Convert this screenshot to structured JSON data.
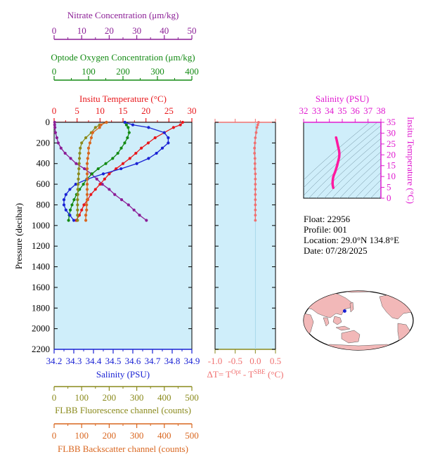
{
  "colors": {
    "nitrate": "#8b1e96",
    "oxygen": "#138a13",
    "temperature": "#e8171b",
    "salinity": "#1a22d4",
    "fluorescence": "#8a8a1c",
    "backscatter": "#d9661f",
    "delta_t": "#f07070",
    "ts_axis": "#e01bd0",
    "panel_fill": "#cfeefa",
    "land": "#f2b8b8",
    "ocean": "#ffffff"
  },
  "icons": {
    "float_marker": "blue-dot-marker"
  },
  "info": {
    "float": "Float:  22956",
    "profile": "Profile:  001",
    "location": "Location:  29.0°N  134.8°E",
    "date": "Date:  07/28/2025"
  },
  "chart_data": [
    {
      "type": "line",
      "title": "",
      "ylabel": "Pressure (decibar)",
      "ylim": [
        2200,
        0
      ],
      "yticks": [
        "0",
        "200",
        "400",
        "600",
        "800",
        "1000",
        "1200",
        "1400",
        "1600",
        "1800",
        "2000",
        "2200"
      ],
      "y": [
        0,
        25,
        50,
        100,
        150,
        200,
        250,
        300,
        350,
        400,
        450,
        500,
        550,
        600,
        650,
        700,
        750,
        800,
        850,
        900,
        950
      ],
      "axes": {
        "nitrate": {
          "label": "Nitrate Concentration (μm/kg)",
          "range": [
            0,
            50
          ],
          "ticks": [
            "0",
            "10",
            "20",
            "30",
            "40",
            "50"
          ]
        },
        "oxygen": {
          "label": "Optode Oxygen Concentration (μm/kg)",
          "range": [
            0,
            400
          ],
          "ticks": [
            "0",
            "100",
            "200",
            "300",
            "400"
          ]
        },
        "temperature": {
          "label": "Insitu Temperature (°C)",
          "range": [
            0,
            30
          ],
          "ticks": [
            "0",
            "5",
            "10",
            "15",
            "20",
            "25",
            "30"
          ]
        },
        "salinity": {
          "label": "Salinity (PSU)",
          "range": [
            34.2,
            34.9
          ],
          "ticks": [
            "34.2",
            "34.3",
            "34.4",
            "34.5",
            "34.6",
            "34.7",
            "34.8",
            "34.9"
          ]
        },
        "fluorescence": {
          "label": "FLBB Fluorescence channel (counts)",
          "range": [
            0,
            500
          ],
          "ticks": [
            "0",
            "100",
            "200",
            "300",
            "400",
            "500"
          ]
        },
        "backscatter": {
          "label": "FLBB Backscatter channel (counts)",
          "range": [
            0,
            500
          ],
          "ticks": [
            "0",
            "100",
            "200",
            "300",
            "400",
            "500"
          ]
        }
      },
      "series": [
        {
          "name": "Nitrate",
          "key": "nitrate",
          "values": [
            0.2,
            0.2,
            0.3,
            0.5,
            1,
            1.5,
            2.5,
            4,
            6,
            8,
            11,
            13.5,
            15.5,
            17.5,
            20,
            22,
            24.5,
            27,
            29,
            31,
            33.5
          ]
        },
        {
          "name": "Oxygen",
          "key": "oxygen",
          "values": [
            205,
            210,
            215,
            218,
            213,
            205,
            195,
            185,
            170,
            150,
            128,
            110,
            95,
            85,
            74,
            65,
            58,
            52,
            47,
            44,
            42
          ]
        },
        {
          "name": "Temperature",
          "key": "temperature",
          "values": [
            28,
            27.5,
            26,
            24,
            22,
            20.5,
            19,
            17.8,
            16.5,
            15,
            13.5,
            12,
            11,
            10,
            9,
            8,
            7.3,
            6.5,
            6,
            5.5,
            4.8
          ]
        },
        {
          "name": "Salinity",
          "key": "salinity",
          "values": [
            34.56,
            34.6,
            34.68,
            34.76,
            34.78,
            34.78,
            34.75,
            34.72,
            34.68,
            34.62,
            34.54,
            34.45,
            34.37,
            34.31,
            34.28,
            34.26,
            34.25,
            34.25,
            34.26,
            34.28,
            34.3
          ]
        },
        {
          "name": "Fluorescence",
          "key": "fluorescence",
          "values": [
            190,
            165,
            150,
            135,
            115,
            100,
            95,
            93,
            92,
            91,
            90,
            89,
            88,
            87,
            86,
            86,
            85,
            85,
            85,
            85,
            85
          ]
        },
        {
          "name": "Backscatter",
          "key": "backscatter",
          "values": [
            190,
            170,
            165,
            140,
            135,
            130,
            125,
            125,
            122,
            120,
            120,
            120,
            120,
            120,
            120,
            120,
            120,
            118,
            118,
            115,
            115
          ]
        }
      ]
    },
    {
      "type": "line",
      "xlabel": "ΔT= T^Opt - T^SBE (°C)",
      "xlim": [
        -1.0,
        0.5
      ],
      "xticks": [
        "-1.0",
        "-0.5",
        "0.0",
        "0.5"
      ],
      "ylim": [
        2200,
        0
      ],
      "y": [
        0,
        25,
        50,
        100,
        150,
        200,
        250,
        300,
        350,
        400,
        450,
        500,
        550,
        600,
        650,
        700,
        750,
        800,
        850,
        900,
        950
      ],
      "values": [
        0.08,
        0.06,
        0.04,
        0.02,
        0.0,
        -0.01,
        -0.02,
        -0.02,
        -0.01,
        -0.01,
        -0.01,
        0.0,
        0.0,
        0.0,
        0.0,
        0.0,
        0.0,
        0.0,
        0.0,
        0.0,
        0.0
      ]
    },
    {
      "type": "line",
      "title": "Salinity (PSU)",
      "ylabel": "Insitu Temperature (°C)",
      "xlim": [
        32,
        38
      ],
      "ylim": [
        0,
        35
      ],
      "xticks": [
        "32",
        "33",
        "34",
        "35",
        "36",
        "37",
        "38"
      ],
      "yticks": [
        "0",
        "5",
        "10",
        "15",
        "20",
        "25",
        "30",
        "35"
      ],
      "x": [
        34.52,
        34.58,
        34.67,
        34.75,
        34.78,
        34.76,
        34.72,
        34.66,
        34.6,
        34.52,
        34.44,
        34.37,
        34.31,
        34.28,
        34.26,
        34.25,
        34.25,
        34.26,
        34.28,
        34.3
      ],
      "values": [
        28,
        26.5,
        24,
        22,
        20.5,
        19,
        17.8,
        16.5,
        15,
        13.5,
        12,
        11,
        10,
        9,
        8,
        7.3,
        6.5,
        6,
        5.5,
        4.8
      ]
    },
    {
      "type": "map",
      "marker": {
        "lat": 29.0,
        "lon": 134.8
      }
    }
  ]
}
